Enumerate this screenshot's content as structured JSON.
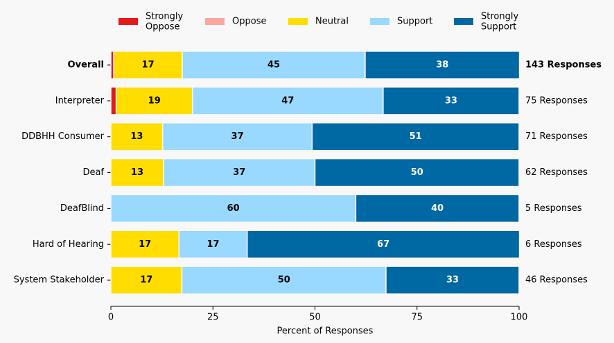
{
  "chart_data": {
    "type": "stacked-barh",
    "categories": [
      "Overall",
      "Interpreter",
      "DDBHH Consumer",
      "Deaf",
      "DeafBlind",
      "Hard of Hearing",
      "System Stakeholder"
    ],
    "right_labels": [
      "143 Responses",
      "75 Responses",
      "71 Responses",
      "62 Responses",
      "5 Responses",
      "6 Responses",
      "46 Responses"
    ],
    "series": [
      {
        "name": "Strongly\nOppose",
        "color": "#e31a1c",
        "text_color": "#000000",
        "values": [
          0.7,
          1.3,
          0,
          0,
          0,
          0,
          0
        ],
        "value_labels": [
          null,
          null,
          null,
          null,
          null,
          null,
          null
        ]
      },
      {
        "name": "Oppose",
        "color": "#fba79e",
        "text_color": "#000000",
        "values": [
          0,
          0,
          0,
          0,
          0,
          0,
          0
        ],
        "value_labels": [
          null,
          null,
          null,
          null,
          null,
          null,
          null
        ]
      },
      {
        "name": "Neutral",
        "color": "#ffdd00",
        "text_color": "#000000",
        "values": [
          16.8,
          18.7,
          12.7,
          12.9,
          0,
          16.7,
          17.4
        ],
        "value_labels": [
          "17",
          "19",
          "13",
          "13",
          null,
          "17",
          "17"
        ]
      },
      {
        "name": "Support",
        "color": "#99d9ff",
        "text_color": "#000000",
        "values": [
          44.8,
          46.7,
          36.6,
          37.1,
          60,
          16.7,
          50.0
        ],
        "value_labels": [
          "45",
          "47",
          "37",
          "37",
          "60",
          "17",
          "50"
        ]
      },
      {
        "name": "Strongly\nSupport",
        "color": "#0068a3",
        "text_color": "#ffffff",
        "values": [
          37.8,
          33.3,
          50.7,
          50.0,
          40,
          66.7,
          32.6
        ],
        "value_labels": [
          "38",
          "33",
          "51",
          "50",
          "40",
          "67",
          "33"
        ]
      }
    ],
    "xlabel": "Percent of Responses",
    "xlim": [
      0,
      100
    ],
    "xticks": [
      0,
      25,
      50,
      75,
      100
    ]
  }
}
